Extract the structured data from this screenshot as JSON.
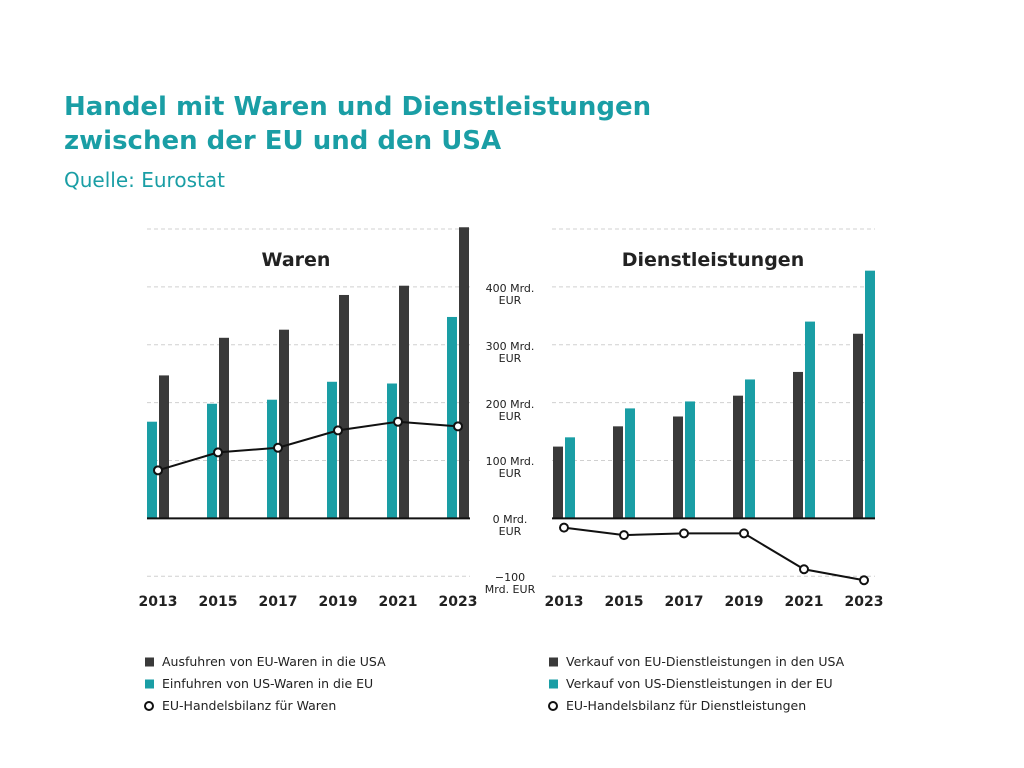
{
  "header": {
    "title": "Handel mit Waren und Dienstleistungen zwischen der EU und den USA",
    "subtitle": "Quelle: Eurostat"
  },
  "chart_data": [
    {
      "type": "bar",
      "title": "Waren",
      "categories": [
        "2013",
        "2015",
        "2017",
        "2019",
        "2021",
        "2023"
      ],
      "series": [
        {
          "name": "Ausfuhren von EU-Waren in die USA",
          "color": "#3a3a3a",
          "values": [
            247,
            312,
            326,
            386,
            402,
            503
          ]
        },
        {
          "name": "Einfuhren von US-Waren in die EU",
          "color": "#1a9ea5",
          "values": [
            167,
            198,
            205,
            236,
            233,
            348
          ]
        },
        {
          "name": "EU-Handelsbilanz für Waren",
          "type": "line",
          "color": "#111111",
          "values": [
            83,
            114,
            122,
            152,
            167,
            159
          ]
        }
      ],
      "ylim": [
        -110,
        500
      ],
      "yticks": [
        {
          "value": -100,
          "label": "−100 Mrd. EUR"
        },
        {
          "value": 0,
          "label": "0 Mrd. EUR"
        },
        {
          "value": 100,
          "label": "100 Mrd. EUR"
        },
        {
          "value": 200,
          "label": "200 Mrd. EUR"
        },
        {
          "value": 300,
          "label": "300 Mrd. EUR"
        },
        {
          "value": 400,
          "label": "400 Mrd. EUR"
        }
      ],
      "grid": true
    },
    {
      "type": "bar",
      "title": "Dienstleistungen",
      "categories": [
        "2013",
        "2015",
        "2017",
        "2019",
        "2021",
        "2023"
      ],
      "series": [
        {
          "name": "Verkauf von EU-Dienstleistungen in den USA",
          "color": "#3a3a3a",
          "values": [
            124,
            159,
            176,
            212,
            253,
            319
          ]
        },
        {
          "name": "Verkauf von US-Dienstleistungen in der EU",
          "color": "#1a9ea5",
          "values": [
            140,
            190,
            202,
            240,
            340,
            428
          ]
        },
        {
          "name": "EU-Handelsbilanz für Dienstleistungen",
          "type": "line",
          "color": "#111111",
          "values": [
            -16,
            -29,
            -26,
            -26,
            -88,
            -107
          ]
        }
      ],
      "ylim": [
        -110,
        500
      ],
      "yticks": [
        -100,
        0,
        100,
        200,
        300,
        400
      ],
      "grid": true
    }
  ]
}
